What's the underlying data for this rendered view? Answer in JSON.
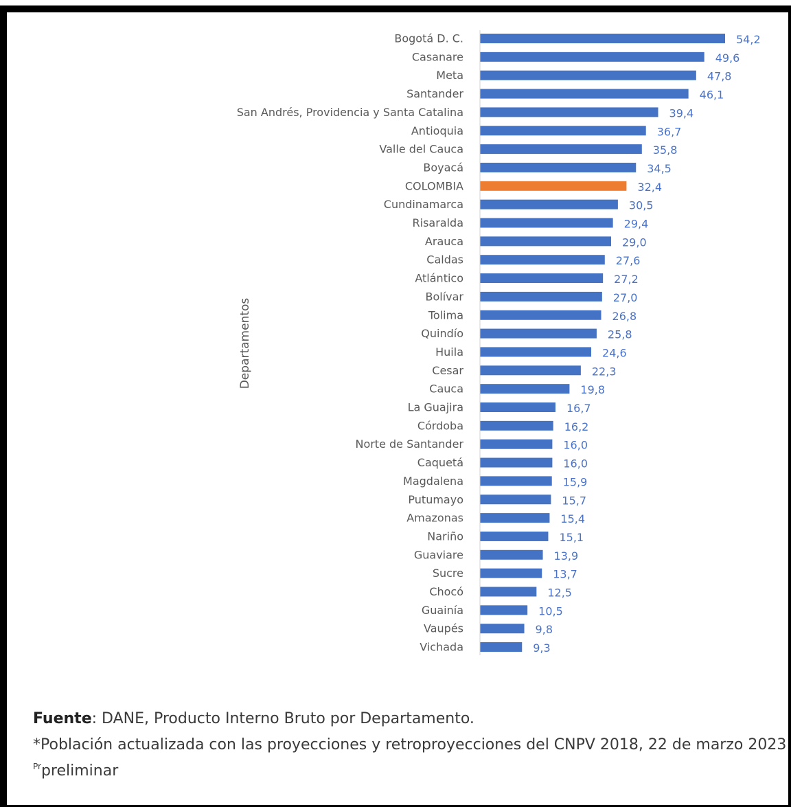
{
  "chart_data": {
    "type": "bar",
    "orientation": "horizontal",
    "ylabel": "Departamentos",
    "categories": [
      "Bogotá D. C.",
      "Casanare",
      "Meta",
      "Santander",
      "San Andrés, Providencia y Santa Catalina",
      "Antioquia",
      "Valle del Cauca",
      "Boyacá",
      "COLOMBIA",
      "Cundinamarca",
      "Risaralda",
      "Arauca",
      "Caldas",
      "Atlántico",
      "Bolívar",
      "Tolima",
      "Quindío",
      "Huila",
      "Cesar",
      "Cauca",
      "La Guajira",
      "Córdoba",
      "Norte de Santander",
      "Caquetá",
      "Magdalena",
      "Putumayo",
      "Amazonas",
      "Nariño",
      "Guaviare",
      "Sucre",
      "Chocó",
      "Guainía",
      "Vaupés",
      "Vichada"
    ],
    "values": [
      54.2,
      49.6,
      47.8,
      46.1,
      39.4,
      36.7,
      35.8,
      34.5,
      32.4,
      30.5,
      29.4,
      29.0,
      27.6,
      27.2,
      27.0,
      26.8,
      25.8,
      24.6,
      22.3,
      19.8,
      16.7,
      16.2,
      16.0,
      16.0,
      15.9,
      15.7,
      15.4,
      15.1,
      13.9,
      13.7,
      12.5,
      10.5,
      9.8,
      9.3
    ],
    "value_labels": [
      "54,2",
      "49,6",
      "47,8",
      "46,1",
      "39,4",
      "36,7",
      "35,8",
      "34,5",
      "32,4",
      "30,5",
      "29,4",
      "29,0",
      "27,6",
      "27,2",
      "27,0",
      "26,8",
      "25,8",
      "24,6",
      "22,3",
      "19,8",
      "16,7",
      "16,2",
      "16,0",
      "16,0",
      "15,9",
      "15,7",
      "15,4",
      "15,1",
      "13,9",
      "13,7",
      "12,5",
      "10,5",
      "9,8",
      "9,3"
    ],
    "highlight_category": "COLOMBIA",
    "xlim": [
      0,
      54.2
    ],
    "grid": false,
    "colors": {
      "bar": "#4472c4",
      "highlight": "#ed7d31",
      "value_label": "#4a73c8",
      "category_label": "#595959"
    }
  },
  "footer": {
    "source_label": "Fuente",
    "source_text": ": DANE, Producto Interno Bruto por Departamento.",
    "note": "*Población actualizada con las proyecciones y retroproyecciones del CNPV 2018, 22 de marzo 2023",
    "pr_superscript": "Pr",
    "pr_text": "preliminar"
  }
}
